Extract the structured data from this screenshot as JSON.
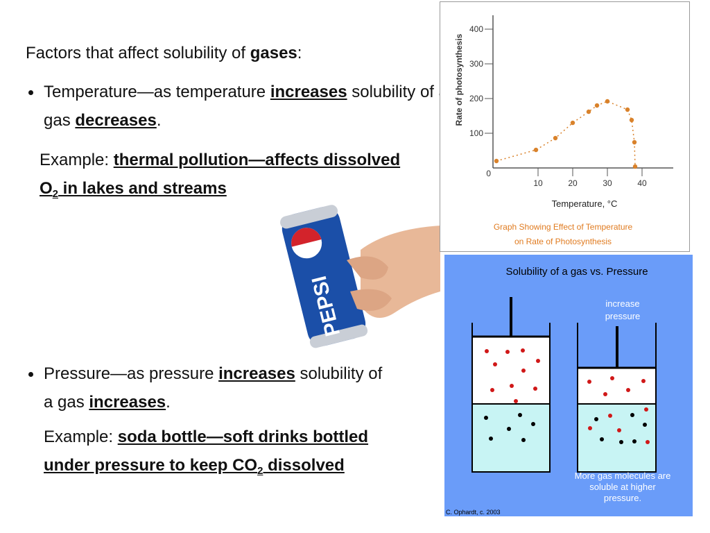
{
  "paragraphs": [
    {
      "bullet": false,
      "left": 0,
      "runs": [
        {
          "text": "Factors that affect solubility of ",
          "style": ""
        },
        {
          "text": "gases",
          "style": "b"
        },
        {
          "text": ":",
          "style": ""
        }
      ]
    },
    {
      "bullet": true,
      "runs": [
        {
          "text": "Temperature—as temperature ",
          "style": ""
        },
        {
          "text": "increases",
          "style": "bu"
        },
        {
          "text": " solubility of a gas ",
          "style": ""
        },
        {
          "text": "decreases",
          "style": "bu"
        },
        {
          "text": ".",
          "style": ""
        }
      ]
    },
    {
      "bullet": false,
      "runs": [
        {
          "text": "Example: ",
          "style": ""
        },
        {
          "text": "thermal pollution—affects dissolved O",
          "style": "bu"
        },
        {
          "text": "2",
          "style": "bus"
        },
        {
          "text": " in lakes and streams",
          "style": "bu"
        }
      ]
    },
    {
      "bullet": true,
      "runs": [
        {
          "text": "Pressure—as pressure ",
          "style": ""
        },
        {
          "text": "increases",
          "style": "bu"
        },
        {
          "text": " solubility of a gas ",
          "style": ""
        },
        {
          "text": "increases",
          "style": "bu"
        },
        {
          "text": ".",
          "style": ""
        }
      ]
    },
    {
      "bullet": false,
      "runs": [
        {
          "text": "Example: ",
          "style": ""
        },
        {
          "text": "soda bottle—soft drinks bottled under pressure to keep CO",
          "style": "bu"
        },
        {
          "text": "2",
          "style": "bus"
        },
        {
          "text": " dissolved",
          "style": "bu"
        }
      ]
    }
  ],
  "photo_label": "PEPSI",
  "chart_data": {
    "type": "line",
    "ylabel": "Rate of photosynthesis",
    "xlabel": "Temperature, °C",
    "caption": [
      "Graph Showing Effect of Temperature",
      "on Rate of Photosynthesis"
    ],
    "origin_label": "0",
    "x": [
      -2,
      9.4,
      15,
      20,
      24.6,
      27,
      30,
      35.8,
      37,
      37.8,
      38
    ],
    "values": [
      20,
      52,
      86,
      130,
      162,
      180,
      192,
      168,
      138,
      74,
      4
    ],
    "color": "#d9822b",
    "xlim": [
      -3,
      49
    ],
    "ylim": [
      0,
      440
    ],
    "xticks": [
      10,
      20,
      30,
      40
    ],
    "yticks": [
      100,
      200,
      300,
      400
    ]
  },
  "diagram": {
    "title": "Solubility of a gas vs. Pressure",
    "arrow_label": [
      "increase",
      "pressure"
    ],
    "note": [
      "More gas molecules are",
      "soluble at higher",
      "pressure."
    ],
    "credit": "C. Ophardt, c. 2003"
  }
}
